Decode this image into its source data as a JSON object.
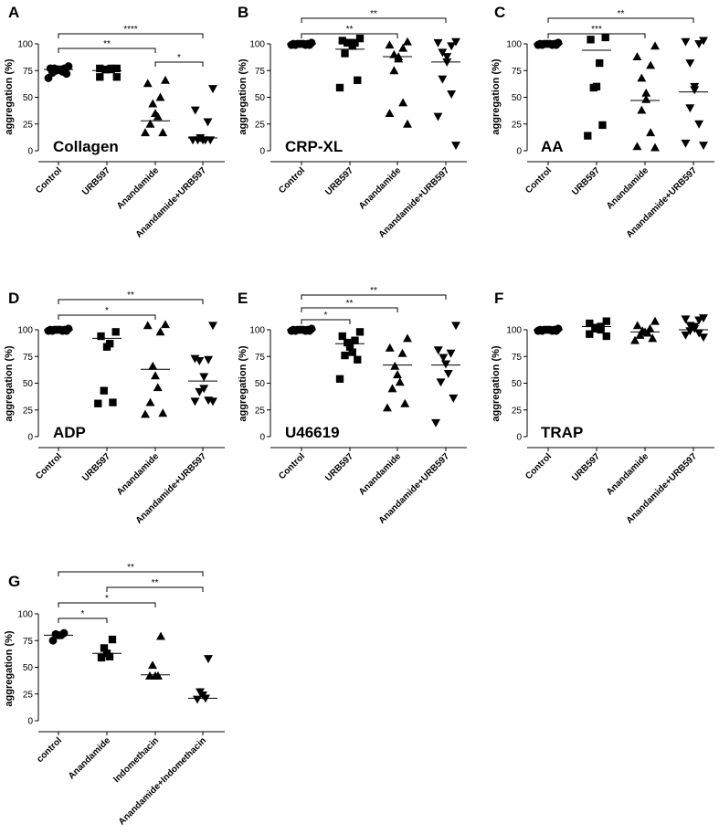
{
  "chart_data": [
    {
      "panel": "A",
      "type": "scatter",
      "inner_label": "Collagen",
      "ylabel": "aggregation (%)",
      "ylim": [
        0,
        100
      ],
      "yticks": [
        0,
        25,
        50,
        75,
        100
      ],
      "categories": [
        "Control",
        "URB597",
        "Anandamide",
        "Anandamide+URB597"
      ],
      "markers": [
        "circle",
        "square",
        "triangle-up",
        "triangle-down"
      ],
      "points": [
        [
          79,
          77,
          77,
          77,
          76,
          76,
          75,
          74,
          73,
          72,
          68
        ],
        [
          77,
          77,
          77,
          76,
          76,
          76,
          69,
          69
        ],
        [
          66,
          63,
          50,
          44,
          35,
          32,
          25,
          17,
          17
        ],
        [
          58,
          38,
          27,
          12,
          10,
          10,
          10,
          10,
          10
        ]
      ],
      "means": [
        76,
        75,
        28,
        12
      ],
      "significance": [
        {
          "pair": [
            0,
            3
          ],
          "label": "****"
        },
        {
          "pair": [
            0,
            2
          ],
          "label": "**"
        },
        {
          "pair": [
            2,
            3
          ],
          "label": "*"
        }
      ]
    },
    {
      "panel": "B",
      "type": "scatter",
      "inner_label": "CRP-XL",
      "ylabel": "aggregation (%)",
      "ylim": [
        0,
        100
      ],
      "yticks": [
        0,
        25,
        50,
        75,
        100
      ],
      "categories": [
        "Control",
        "URB597",
        "Anandamide",
        "Anandamide+URB597"
      ],
      "markers": [
        "circle",
        "square",
        "triangle-up",
        "triangle-down"
      ],
      "points": [
        [
          101,
          100,
          100,
          100,
          100,
          100,
          100,
          99,
          99,
          99,
          99
        ],
        [
          105,
          103,
          101,
          101,
          101,
          98,
          91,
          66,
          59
        ],
        [
          102,
          99,
          96,
          90,
          88,
          86,
          75,
          45,
          35,
          25
        ],
        [
          102,
          101,
          98,
          92,
          88,
          83,
          67,
          53,
          32,
          5
        ]
      ],
      "means": [
        100,
        95,
        88,
        83
      ],
      "significance": [
        {
          "pair": [
            0,
            3
          ],
          "label": "**"
        },
        {
          "pair": [
            0,
            2
          ],
          "label": "**"
        }
      ]
    },
    {
      "panel": "C",
      "type": "scatter",
      "inner_label": "AA",
      "ylabel": "aggregation (%)",
      "ylim": [
        0,
        100
      ],
      "yticks": [
        0,
        25,
        50,
        75,
        100
      ],
      "categories": [
        "Control",
        "URB597",
        "Anandamide",
        "Anandamide+URB597"
      ],
      "markers": [
        "circle",
        "square",
        "triangle-up",
        "triangle-down"
      ],
      "points": [
        [
          101,
          100,
          100,
          100,
          100,
          100,
          100,
          99,
          99,
          99,
          99
        ],
        [
          106,
          104,
          82,
          60,
          59,
          24,
          14
        ],
        [
          98,
          88,
          80,
          68,
          54,
          48,
          38,
          17,
          4,
          3
        ],
        [
          103,
          102,
          100,
          82,
          60,
          57,
          40,
          25,
          7,
          5
        ]
      ],
      "means": [
        100,
        94,
        47,
        55
      ],
      "significance": [
        {
          "pair": [
            0,
            3
          ],
          "label": "**"
        },
        {
          "pair": [
            0,
            2
          ],
          "label": "***"
        }
      ]
    },
    {
      "panel": "D",
      "type": "scatter",
      "inner_label": "ADP",
      "ylabel": "aggregation (%)",
      "ylim": [
        0,
        100
      ],
      "yticks": [
        0,
        25,
        50,
        75,
        100
      ],
      "categories": [
        "Control",
        "URB597",
        "Anandamide",
        "Anandamide+URB597"
      ],
      "markers": [
        "circle",
        "square",
        "triangle-up",
        "triangle-down"
      ],
      "points": [
        [
          101,
          100,
          100,
          100,
          100,
          100,
          100,
          99,
          99,
          99,
          99
        ],
        [
          98,
          94,
          87,
          84,
          43,
          32,
          31
        ],
        [
          105,
          104,
          98,
          66,
          57,
          46,
          32,
          22,
          21
        ],
        [
          104,
          73,
          72,
          71,
          56,
          45,
          42,
          34,
          33,
          33
        ]
      ],
      "means": [
        100,
        92,
        63,
        52
      ],
      "significance": [
        {
          "pair": [
            0,
            3
          ],
          "label": "**"
        },
        {
          "pair": [
            0,
            2
          ],
          "label": "*"
        }
      ]
    },
    {
      "panel": "E",
      "type": "scatter",
      "inner_label": "U46619",
      "ylabel": "aggregation (%)",
      "ylim": [
        0,
        100
      ],
      "yticks": [
        0,
        25,
        50,
        75,
        100
      ],
      "categories": [
        "Control",
        "URB597",
        "Anandamide",
        "Anandamide+URB597"
      ],
      "markers": [
        "circle",
        "square",
        "triangle-up",
        "triangle-down"
      ],
      "points": [
        [
          101,
          100,
          100,
          100,
          100,
          100,
          100,
          99,
          99,
          99,
          99
        ],
        [
          98,
          94,
          90,
          88,
          84,
          79,
          76,
          72,
          54
        ],
        [
          92,
          83,
          78,
          66,
          58,
          51,
          45,
          31,
          27
        ],
        [
          104,
          81,
          78,
          74,
          68,
          59,
          51,
          36,
          13
        ]
      ],
      "means": [
        100,
        87,
        67,
        67
      ],
      "significance": [
        {
          "pair": [
            0,
            3
          ],
          "label": "**"
        },
        {
          "pair": [
            0,
            2
          ],
          "label": "**"
        },
        {
          "pair": [
            0,
            1
          ],
          "label": "*"
        }
      ]
    },
    {
      "panel": "F",
      "type": "scatter",
      "inner_label": "TRAP",
      "ylabel": "aggregation (%)",
      "ylim": [
        0,
        100
      ],
      "yticks": [
        0,
        25,
        50,
        75,
        100
      ],
      "categories": [
        "Control",
        "URB597",
        "Anandamide",
        "Anandamide+URB597"
      ],
      "markers": [
        "circle",
        "square",
        "triangle-up",
        "triangle-down"
      ],
      "points": [
        [
          101,
          100,
          100,
          100,
          100,
          100,
          100,
          99,
          99,
          99,
          99
        ],
        [
          108,
          106,
          103,
          102,
          101,
          100,
          96,
          94
        ],
        [
          108,
          104,
          101,
          99,
          98,
          97,
          95,
          92,
          90
        ],
        [
          111,
          110,
          109,
          104,
          103,
          101,
          99,
          97,
          95,
          93
        ]
      ],
      "means": [
        100,
        103,
        98,
        100
      ],
      "significance": []
    },
    {
      "panel": "G",
      "type": "scatter",
      "inner_label": "",
      "ylabel": "aggregation (%)",
      "ylim": [
        0,
        100
      ],
      "yticks": [
        0,
        25,
        50,
        75,
        100
      ],
      "categories": [
        "control",
        "Anandamide",
        "Indomethacin",
        "Anandamide+Indomethacin"
      ],
      "markers": [
        "circle",
        "square",
        "triangle-up",
        "triangle-down"
      ],
      "points": [
        [
          82,
          81,
          80,
          80,
          75
        ],
        [
          76,
          68,
          63,
          60,
          59
        ],
        [
          79,
          52,
          42,
          42,
          42
        ],
        [
          58,
          27,
          24,
          21,
          20
        ]
      ],
      "means": [
        80,
        63,
        43,
        21
      ],
      "significance": [
        {
          "pair": [
            0,
            3
          ],
          "label": "**"
        },
        {
          "pair": [
            1,
            3
          ],
          "label": "**"
        },
        {
          "pair": [
            0,
            2
          ],
          "label": "*"
        },
        {
          "pair": [
            0,
            1
          ],
          "label": "*"
        }
      ]
    }
  ]
}
